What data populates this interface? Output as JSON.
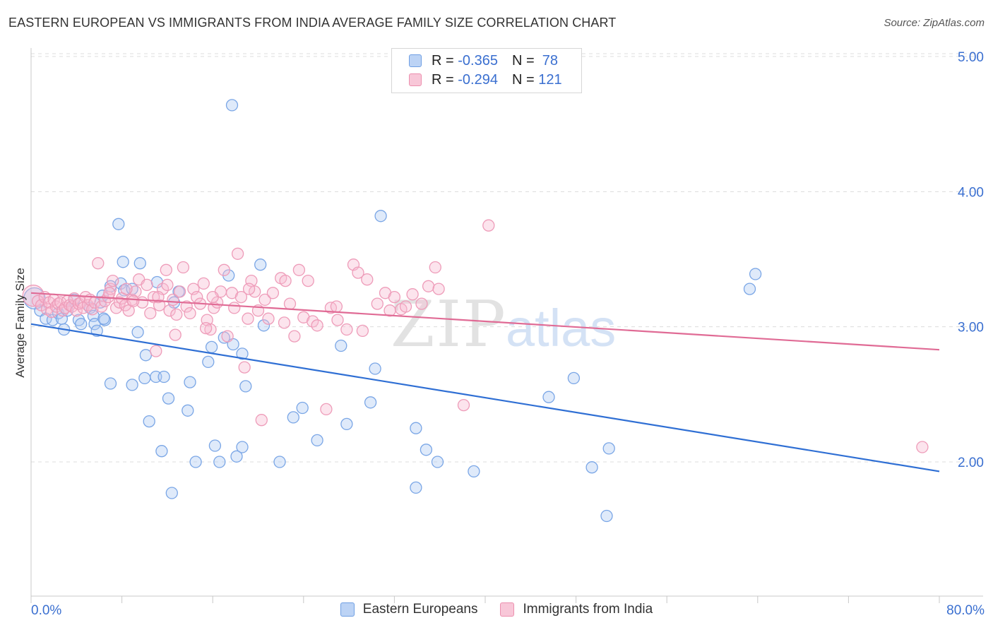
{
  "header": {
    "title": "EASTERN EUROPEAN VS IMMIGRANTS FROM INDIA AVERAGE FAMILY SIZE CORRELATION CHART",
    "source": "Source: ZipAtlas.com"
  },
  "watermark": {
    "zip": "ZIP",
    "atlas": "atlas"
  },
  "legend": {
    "r_label": "R =",
    "n_label": "N =",
    "entries": [
      {
        "name": "Eastern Europeans",
        "r": "-0.365",
        "n": "78",
        "color": "#6f9fe3",
        "fill": "#bcd3f5"
      },
      {
        "name": "Immigrants from India",
        "r": "-0.294",
        "n": "121",
        "color": "#ec8fae",
        "fill": "#f8c7d8"
      }
    ]
  },
  "chart_data": {
    "type": "scatter",
    "title": "EASTERN EUROPEAN VS IMMIGRANTS FROM INDIA AVERAGE FAMILY SIZE CORRELATION CHART",
    "xlabel": "",
    "ylabel": "Average Family Size",
    "xlim": [
      0,
      80
    ],
    "ylim": [
      1.0,
      5.1
    ],
    "x_tick_labels": [
      "0.0%",
      "80.0%"
    ],
    "y_ticks": [
      2.0,
      3.0,
      4.0,
      5.0
    ],
    "y_tick_labels": [
      "2.00",
      "3.00",
      "4.00",
      "5.00"
    ],
    "grid": true,
    "legend_position": "top-center",
    "series": [
      {
        "name": "Eastern Europeans",
        "color": "#6f9fe3",
        "trend": [
          [
            0,
            3.02
          ],
          [
            80,
            1.93
          ]
        ],
        "points": [
          [
            0.3,
            3.21
          ],
          [
            0.8,
            3.12
          ],
          [
            1.3,
            3.06
          ],
          [
            1.9,
            3.05
          ],
          [
            2.4,
            3.1
          ],
          [
            2.7,
            3.06
          ],
          [
            2.9,
            2.98
          ],
          [
            3.2,
            3.12
          ],
          [
            3.8,
            3.2
          ],
          [
            4.2,
            3.05
          ],
          [
            4.4,
            3.02
          ],
          [
            5.2,
            3.14
          ],
          [
            5.5,
            3.08
          ],
          [
            5.6,
            3.02
          ],
          [
            5.8,
            2.97
          ],
          [
            6.1,
            3.18
          ],
          [
            6.3,
            3.23
          ],
          [
            6.5,
            3.05
          ],
          [
            7.0,
            2.58
          ],
          [
            7.0,
            3.3
          ],
          [
            7.9,
            3.32
          ],
          [
            8.2,
            3.27
          ],
          [
            7.7,
            3.76
          ],
          [
            8.1,
            3.48
          ],
          [
            8.9,
            3.28
          ],
          [
            8.9,
            2.57
          ],
          [
            9.4,
            2.96
          ],
          [
            9.6,
            3.47
          ],
          [
            10.0,
            2.62
          ],
          [
            10.1,
            2.79
          ],
          [
            10.4,
            2.3
          ],
          [
            11.0,
            2.63
          ],
          [
            11.1,
            3.33
          ],
          [
            11.5,
            2.08
          ],
          [
            11.7,
            2.63
          ],
          [
            12.1,
            2.47
          ],
          [
            12.4,
            1.77
          ],
          [
            12.6,
            3.18
          ],
          [
            13.0,
            3.26
          ],
          [
            13.8,
            2.38
          ],
          [
            14.0,
            2.59
          ],
          [
            14.5,
            2.0
          ],
          [
            15.6,
            2.74
          ],
          [
            15.9,
            2.85
          ],
          [
            16.2,
            2.12
          ],
          [
            16.6,
            2.0
          ],
          [
            17.0,
            2.92
          ],
          [
            17.7,
            4.64
          ],
          [
            17.8,
            2.87
          ],
          [
            18.1,
            2.04
          ],
          [
            18.6,
            2.8
          ],
          [
            18.6,
            2.11
          ],
          [
            18.9,
            2.56
          ],
          [
            20.2,
            3.46
          ],
          [
            20.5,
            3.01
          ],
          [
            21.9,
            2.0
          ],
          [
            23.1,
            2.33
          ],
          [
            23.9,
            2.4
          ],
          [
            25.2,
            2.16
          ],
          [
            27.3,
            2.86
          ],
          [
            27.8,
            2.28
          ],
          [
            29.9,
            2.44
          ],
          [
            30.3,
            2.69
          ],
          [
            30.8,
            3.82
          ],
          [
            33.9,
            2.25
          ],
          [
            33.9,
            1.81
          ],
          [
            34.8,
            2.09
          ],
          [
            35.8,
            2.0
          ],
          [
            39.0,
            1.93
          ],
          [
            45.6,
            2.48
          ],
          [
            47.8,
            2.62
          ],
          [
            49.4,
            1.96
          ],
          [
            50.7,
            1.6
          ],
          [
            50.9,
            2.1
          ],
          [
            63.3,
            3.28
          ],
          [
            63.8,
            3.39
          ],
          [
            17.4,
            3.38
          ],
          [
            6.4,
            3.06
          ]
        ]
      },
      {
        "name": "Immigrants from India",
        "color": "#ec8fae",
        "trend": [
          [
            0,
            3.25
          ],
          [
            80,
            2.83
          ]
        ],
        "points": [
          [
            0.2,
            3.23
          ],
          [
            0.6,
            3.19
          ],
          [
            0.9,
            3.16
          ],
          [
            1.2,
            3.22
          ],
          [
            1.4,
            3.13
          ],
          [
            1.6,
            3.18
          ],
          [
            1.8,
            3.11
          ],
          [
            2.0,
            3.2
          ],
          [
            2.2,
            3.15
          ],
          [
            2.4,
            3.17
          ],
          [
            2.6,
            3.18
          ],
          [
            2.8,
            3.12
          ],
          [
            3.0,
            3.14
          ],
          [
            3.2,
            3.19
          ],
          [
            3.4,
            3.16
          ],
          [
            3.6,
            3.15
          ],
          [
            3.8,
            3.21
          ],
          [
            4.0,
            3.12
          ],
          [
            4.2,
            3.17
          ],
          [
            4.4,
            3.18
          ],
          [
            4.6,
            3.14
          ],
          [
            4.8,
            3.22
          ],
          [
            5.0,
            3.16
          ],
          [
            5.2,
            3.2
          ],
          [
            5.4,
            3.13
          ],
          [
            5.6,
            3.18
          ],
          [
            5.9,
            3.47
          ],
          [
            6.2,
            3.15
          ],
          [
            6.5,
            3.19
          ],
          [
            6.8,
            3.22
          ],
          [
            7.0,
            3.28
          ],
          [
            7.2,
            3.34
          ],
          [
            7.5,
            3.14
          ],
          [
            7.8,
            3.18
          ],
          [
            8.0,
            3.21
          ],
          [
            8.3,
            3.16
          ],
          [
            8.6,
            3.12
          ],
          [
            8.9,
            3.2
          ],
          [
            9.2,
            3.26
          ],
          [
            9.5,
            3.35
          ],
          [
            9.8,
            3.18
          ],
          [
            10.2,
            3.31
          ],
          [
            10.5,
            3.1
          ],
          [
            10.8,
            3.22
          ],
          [
            11.0,
            2.82
          ],
          [
            11.3,
            3.16
          ],
          [
            11.6,
            3.28
          ],
          [
            11.9,
            3.42
          ],
          [
            12.2,
            3.12
          ],
          [
            12.5,
            3.2
          ],
          [
            12.8,
            3.09
          ],
          [
            13.1,
            3.26
          ],
          [
            13.4,
            3.44
          ],
          [
            13.7,
            3.15
          ],
          [
            14.0,
            3.1
          ],
          [
            14.3,
            3.28
          ],
          [
            14.6,
            3.22
          ],
          [
            14.9,
            3.17
          ],
          [
            15.2,
            3.32
          ],
          [
            15.5,
            3.05
          ],
          [
            15.8,
            2.98
          ],
          [
            16.1,
            3.14
          ],
          [
            16.4,
            3.18
          ],
          [
            16.7,
            3.26
          ],
          [
            17.0,
            3.42
          ],
          [
            17.3,
            2.93
          ],
          [
            17.7,
            3.25
          ],
          [
            17.9,
            3.14
          ],
          [
            18.2,
            3.54
          ],
          [
            18.5,
            3.22
          ],
          [
            18.8,
            2.7
          ],
          [
            19.1,
            3.06
          ],
          [
            19.4,
            3.34
          ],
          [
            19.7,
            3.26
          ],
          [
            20.0,
            3.12
          ],
          [
            20.3,
            2.31
          ],
          [
            20.6,
            3.2
          ],
          [
            20.9,
            3.06
          ],
          [
            21.3,
            3.25
          ],
          [
            22.0,
            3.36
          ],
          [
            22.4,
            3.34
          ],
          [
            22.8,
            3.17
          ],
          [
            23.2,
            2.93
          ],
          [
            23.6,
            3.42
          ],
          [
            24.0,
            3.07
          ],
          [
            24.4,
            3.34
          ],
          [
            24.8,
            3.04
          ],
          [
            25.2,
            3.01
          ],
          [
            26.0,
            2.39
          ],
          [
            26.4,
            3.14
          ],
          [
            27.0,
            3.05
          ],
          [
            27.8,
            2.98
          ],
          [
            28.4,
            3.46
          ],
          [
            28.8,
            3.4
          ],
          [
            29.2,
            2.97
          ],
          [
            30.5,
            3.17
          ],
          [
            31.2,
            3.25
          ],
          [
            32.0,
            3.22
          ],
          [
            32.6,
            3.13
          ],
          [
            33.0,
            3.15
          ],
          [
            33.6,
            3.24
          ],
          [
            34.4,
            3.17
          ],
          [
            35.0,
            3.3
          ],
          [
            35.6,
            3.44
          ],
          [
            35.9,
            3.28
          ],
          [
            38.1,
            2.42
          ],
          [
            40.3,
            3.75
          ],
          [
            78.5,
            2.11
          ],
          [
            11.2,
            3.22
          ],
          [
            12.0,
            3.31
          ],
          [
            9.0,
            3.19
          ],
          [
            6.9,
            3.25
          ],
          [
            16.0,
            3.22
          ],
          [
            19.2,
            3.28
          ],
          [
            22.3,
            3.03
          ],
          [
            26.9,
            3.15
          ],
          [
            31.6,
            3.12
          ],
          [
            29.6,
            3.35
          ],
          [
            15.4,
            2.99
          ],
          [
            12.7,
            2.94
          ],
          [
            8.4,
            3.28
          ]
        ]
      }
    ]
  }
}
